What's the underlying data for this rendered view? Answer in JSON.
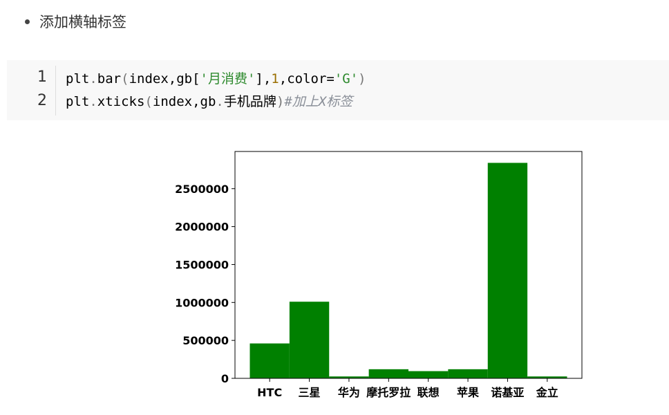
{
  "bullet": {
    "text": "添加横轴标签"
  },
  "code": {
    "lines": [
      {
        "number": "1",
        "segments": [
          {
            "text": "plt",
            "cls": ""
          },
          {
            "text": ".",
            "cls": "op"
          },
          {
            "text": "bar",
            "cls": ""
          },
          {
            "text": "(",
            "cls": "op"
          },
          {
            "text": "index,gb[",
            "cls": ""
          },
          {
            "text": "'月消费'",
            "cls": "str"
          },
          {
            "text": "],",
            "cls": ""
          },
          {
            "text": "1",
            "cls": "num"
          },
          {
            "text": ",color=",
            "cls": ""
          },
          {
            "text": "'G'",
            "cls": "str"
          },
          {
            "text": ")",
            "cls": "op"
          }
        ]
      },
      {
        "number": "2",
        "segments": [
          {
            "text": "plt",
            "cls": ""
          },
          {
            "text": ".",
            "cls": "op"
          },
          {
            "text": "xticks",
            "cls": ""
          },
          {
            "text": "(",
            "cls": "op"
          },
          {
            "text": "index,gb",
            "cls": ""
          },
          {
            "text": ".",
            "cls": "op"
          },
          {
            "text": "手机品牌",
            "cls": ""
          },
          {
            "text": ")",
            "cls": "op"
          },
          {
            "text": "#加上X标签",
            "cls": "cmt"
          }
        ]
      }
    ]
  },
  "chart_data": {
    "type": "bar",
    "categories": [
      "HTC",
      "三星",
      "华为",
      "摩托罗拉",
      "联想",
      "苹果",
      "诺基亚",
      "金立"
    ],
    "values": [
      460000,
      1010000,
      25000,
      120000,
      95000,
      120000,
      2840000,
      25000
    ],
    "color": "#008000",
    "yticks": [
      0,
      500000,
      1000000,
      1500000,
      2000000,
      2500000
    ],
    "ytick_labels": [
      "0",
      "500000",
      "1000000",
      "1500000",
      "2000000",
      "2500000"
    ],
    "ylim": [
      0,
      3000000
    ],
    "grid": false,
    "title": "",
    "xlabel": "",
    "ylabel": ""
  }
}
